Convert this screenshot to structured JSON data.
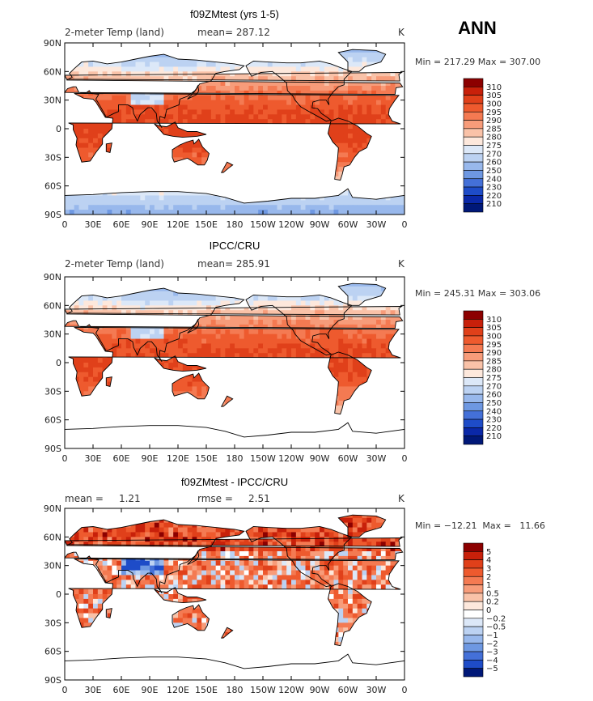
{
  "season": "ANN",
  "panels": [
    {
      "title": "f09ZMtest (yrs 1-5)",
      "left_label": "2-meter Temp (land)",
      "mid_label": "mean= 287.12",
      "right_label": "K",
      "stats_text": "Min = 217.29  Max = 307.00",
      "colorbar_levels": [
        "310",
        "305",
        "300",
        "295",
        "290",
        "285",
        "280",
        "275",
        "270",
        "260",
        "250",
        "240",
        "230",
        "220",
        "210"
      ],
      "colorbar_colors": [
        "#8c0000",
        "#c8200a",
        "#e0401a",
        "#ee5a2e",
        "#f47a52",
        "#f79c7a",
        "#f9c2a8",
        "#fde8dc",
        "#dce8f8",
        "#bcd2f2",
        "#98b8ec",
        "#6e98e2",
        "#4470d8",
        "#1e4cc8",
        "#0a28a8",
        "#001878"
      ],
      "map_kind": "absolute"
    },
    {
      "title": "IPCC/CRU",
      "left_label": "2-meter Temp (land)",
      "mid_label": "mean= 285.91",
      "right_label": "K",
      "stats_text": "Min = 245.31  Max = 303.06",
      "colorbar_levels": [
        "310",
        "305",
        "300",
        "295",
        "290",
        "285",
        "280",
        "275",
        "270",
        "260",
        "250",
        "240",
        "230",
        "220",
        "210"
      ],
      "colorbar_colors": [
        "#8c0000",
        "#c8200a",
        "#e0401a",
        "#ee5a2e",
        "#f47a52",
        "#f79c7a",
        "#f9c2a8",
        "#fde8dc",
        "#dce8f8",
        "#bcd2f2",
        "#98b8ec",
        "#6e98e2",
        "#4470d8",
        "#1e4cc8",
        "#0a28a8",
        "#001878"
      ],
      "map_kind": "observed"
    },
    {
      "title": "f09ZMtest - IPCC/CRU",
      "left_label": "mean =     1.21",
      "mid_label": "rmse =     2.51",
      "right_label": "K",
      "stats_text": "Min = −12.21  Max =   11.66",
      "colorbar_levels": [
        "5",
        "4",
        "3",
        "2",
        "1",
        "0.5",
        "0.2",
        "0",
        "−0.2",
        "−0.5",
        "−1",
        "−2",
        "−3",
        "−4",
        "−5"
      ],
      "colorbar_colors": [
        "#8c0000",
        "#c8200a",
        "#e0401a",
        "#ee5a2e",
        "#f47a52",
        "#f79c7a",
        "#f9c2a8",
        "#fde8dc",
        "#ffffff",
        "#dce8f8",
        "#bcd2f2",
        "#98b8ec",
        "#6e98e2",
        "#4470d8",
        "#1e4cc8",
        "#001878"
      ],
      "map_kind": "difference"
    }
  ],
  "chart_data": {
    "type": "heatmap",
    "description_units": "K",
    "lat_ticks": [
      "90N",
      "60N",
      "30N",
      "0",
      "30S",
      "60S",
      "90S"
    ],
    "lon_ticks": [
      "0",
      "30E",
      "60E",
      "90E",
      "120E",
      "150E",
      "180",
      "150W",
      "120W",
      "90W",
      "60W",
      "30W",
      "0"
    ],
    "series": [
      {
        "name": "f09ZMtest (yrs 1-5)",
        "mean": 287.12,
        "min": 217.29,
        "max": 307.0
      },
      {
        "name": "IPCC/CRU",
        "mean": 285.91,
        "min": 245.31,
        "max": 303.06
      },
      {
        "name": "f09ZMtest - IPCC/CRU",
        "mean": 1.21,
        "rmse": 2.51,
        "min": -12.21,
        "max": 11.66
      }
    ]
  }
}
